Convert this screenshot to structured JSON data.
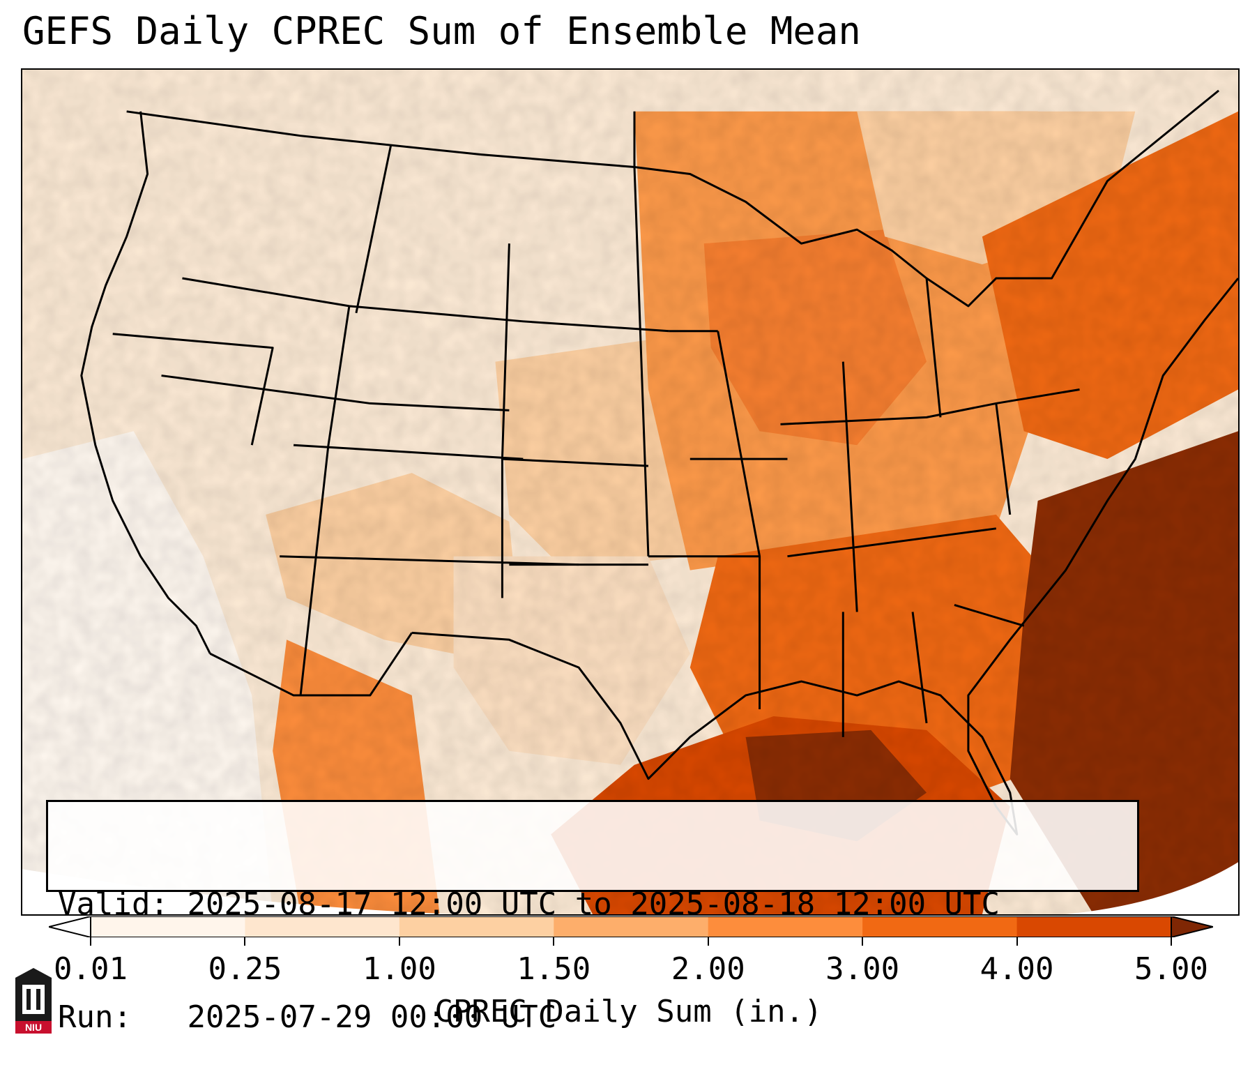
{
  "title": "GEFS Daily CPREC Sum of Ensemble Mean",
  "info": {
    "valid_label": "Valid:",
    "valid_value": "2025-08-17 12:00 UTC to 2025-08-18 12:00 UTC",
    "run_label": "Run:",
    "run_value": "2025-07-29 00:00 UTC"
  },
  "colorbar": {
    "label": "CPREC Daily Sum (in.)",
    "ticks": [
      "0.01",
      "0.25",
      "1.00",
      "1.50",
      "2.00",
      "3.00",
      "4.00",
      "5.00"
    ],
    "colors": [
      "#fff5eb",
      "#fee6ce",
      "#fdd0a2",
      "#fdae6b",
      "#fd8d3c",
      "#f16913",
      "#d94801",
      "#8c2d04"
    ],
    "under_color": "#ffffff",
    "over_color": "#7f2704"
  },
  "logo": {
    "text": "NIU",
    "icon": "university-tower-icon"
  }
}
